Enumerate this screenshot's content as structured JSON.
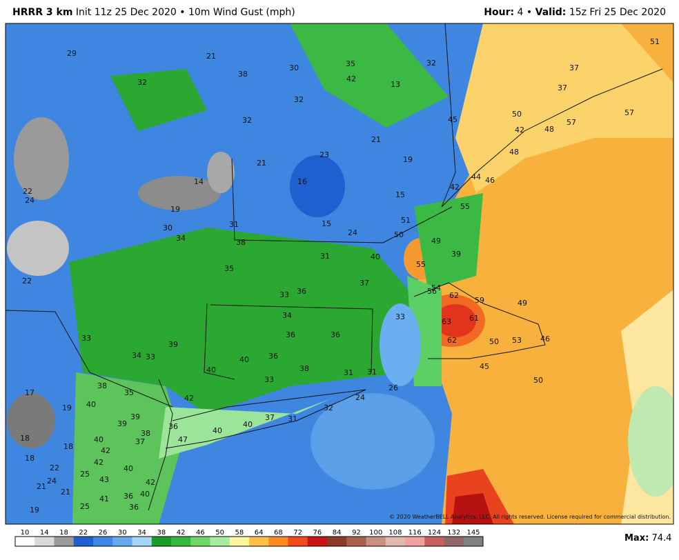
{
  "header": {
    "model": "HRRR 3 km",
    "description": "Init 11z 25 Dec 2020 • 10m Wind Gust (mph)",
    "hour_label": "Hour:",
    "hour": 4,
    "valid_label": "Valid:",
    "valid": "15z Fri 25 Dec 2020"
  },
  "map_labels": [
    29,
    21,
    38,
    30,
    35,
    42,
    32,
    13,
    37,
    51,
    37,
    32,
    32,
    32,
    45,
    50,
    57,
    57,
    42,
    48,
    21,
    23,
    19,
    48,
    21,
    44,
    46,
    14,
    16,
    42,
    22,
    24,
    15,
    19,
    55,
    31,
    15,
    51,
    30,
    24,
    50,
    34,
    38,
    49,
    31,
    40,
    39,
    55,
    35,
    22,
    37,
    54,
    56,
    62,
    33,
    36,
    59,
    49,
    34,
    33,
    63,
    61,
    36,
    36,
    33,
    62,
    50,
    53,
    46,
    39,
    34,
    33,
    40,
    36,
    40,
    38,
    31,
    31,
    45,
    33,
    50,
    38,
    26,
    35,
    17,
    42,
    24,
    40,
    32,
    19,
    39,
    37,
    31,
    39,
    40,
    40,
    36,
    38,
    18,
    40,
    47,
    37,
    18,
    42,
    18,
    42,
    22,
    40,
    25,
    43,
    24,
    42,
    21,
    21,
    40,
    36,
    41,
    25,
    36,
    19
  ],
  "copyright": "© 2020 WeatherBELL Analytics, LLC. All rights reserved. License required for commercial distribution.",
  "colorbar": {
    "ticks": [
      10,
      14,
      18,
      22,
      26,
      30,
      34,
      38,
      42,
      46,
      50,
      58,
      64,
      68,
      72,
      76,
      84,
      92,
      100,
      108,
      116,
      124,
      132,
      145
    ],
    "colors": [
      "#ffffff",
      "#d9d9d9",
      "#9a9a9a",
      "#1f5fcf",
      "#3d86e3",
      "#67a8ef",
      "#a5d6f7",
      "#1a9c2a",
      "#34b83c",
      "#6fd66a",
      "#a8eca0",
      "#fff5a0",
      "#ffc04a",
      "#ff8a22",
      "#f04a1e",
      "#c81414",
      "#8c3a2a",
      "#a8604c",
      "#c89080",
      "#e0b8b0",
      "#f0a0a0",
      "#c86060",
      "#906868",
      "#808080"
    ]
  },
  "max_label": "Max:",
  "max": 74.4
}
